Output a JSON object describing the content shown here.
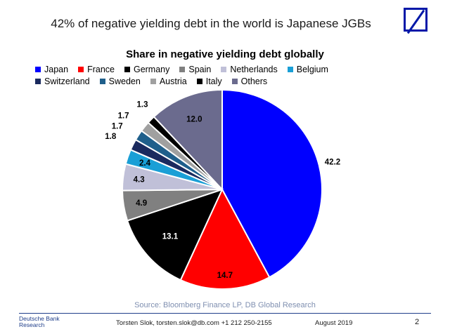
{
  "headline": "42% of negative yielding debt in the world is Japanese JGBs",
  "logo": {
    "color": "#0018a8"
  },
  "chart_data": {
    "type": "pie",
    "title": "Share in negative yielding debt globally",
    "slices": [
      {
        "label": "Japan",
        "value": 42.2,
        "color": "#0000ff"
      },
      {
        "label": "France",
        "value": 14.7,
        "color": "#ff0000"
      },
      {
        "label": "Germany",
        "value": 13.1,
        "color": "#000000"
      },
      {
        "label": "Spain",
        "value": 4.9,
        "color": "#808080"
      },
      {
        "label": "Netherlands",
        "value": 4.3,
        "color": "#c0c0d8"
      },
      {
        "label": "Belgium",
        "value": 2.4,
        "color": "#1a9fd6"
      },
      {
        "label": "Switzerland",
        "value": 1.8,
        "color": "#1a2a5e"
      },
      {
        "label": "Sweden",
        "value": 1.7,
        "color": "#1f5f8b"
      },
      {
        "label": "Austria",
        "value": 1.7,
        "color": "#a0a0a0"
      },
      {
        "label": "Italy",
        "value": 1.3,
        "color": "#000000"
      },
      {
        "label": "Others",
        "value": 12.0,
        "color": "#6b6b8e"
      }
    ],
    "legend_placement": "top",
    "start_angle_deg": 0,
    "direction": "clockwise"
  },
  "source": "Source: Bloomberg Finance LP, DB Global Research",
  "footer": {
    "company_line1": "Deutsche Bank",
    "company_line2": "Research",
    "contact": "Torsten Slok, torsten.slok@db.com  +1 212 250-2155",
    "date": "August 2019",
    "page": "2"
  }
}
